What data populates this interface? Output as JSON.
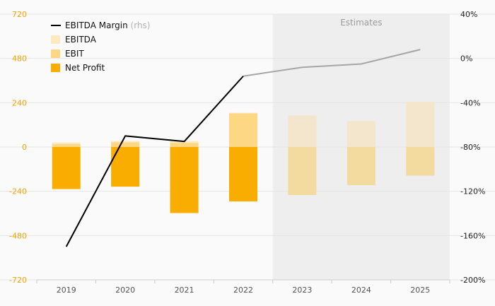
{
  "chart_data": {
    "type": "bar",
    "categories": [
      "2019",
      "2020",
      "2021",
      "2022",
      "2023",
      "2024",
      "2025"
    ],
    "estimates_from_index": 4,
    "estimates_label": "Estimates",
    "ylim_left": [
      -720,
      720
    ],
    "yticks_left": [
      720,
      480,
      240,
      0,
      -240,
      -480,
      -720
    ],
    "ylim_right": [
      -200,
      40
    ],
    "yticks_right": [
      40,
      0,
      -40,
      -80,
      -120,
      -160,
      -200
    ],
    "right_tick_suffix": "%",
    "series": [
      {
        "name": "EBITDA",
        "kind": "bar",
        "values": [
          25,
          32,
          32,
          185,
          170,
          140,
          245
        ]
      },
      {
        "name": "EBIT",
        "kind": "bar",
        "values": [
          15,
          25,
          22,
          182,
          160,
          125,
          230
        ]
      },
      {
        "name": "Net Profit",
        "kind": "bar",
        "values": [
          -228,
          -215,
          -358,
          -295,
          -260,
          -207,
          -155
        ]
      },
      {
        "name": "EBITDA Margin",
        "kind": "line",
        "axis": "right",
        "values": [
          -170,
          -70,
          -75,
          -16,
          -8,
          -5,
          8
        ]
      }
    ],
    "legend": {
      "position": "top-left",
      "items": [
        {
          "label": "EBITDA Margin",
          "suffix": "(rhs)",
          "color": "#000000",
          "shape": "line"
        },
        {
          "label": "EBITDA",
          "color": "#fde9bf",
          "shape": "square"
        },
        {
          "label": "EBIT",
          "color": "#fdd784",
          "shape": "square"
        },
        {
          "label": "Net Profit",
          "color": "#f8ad00",
          "shape": "square"
        }
      ]
    },
    "colors": {
      "ebitda": "#fde9bf",
      "ebit": "#fdd784",
      "net_profit": "#f8ad00",
      "estimate_bar_top": "#f3e6cc",
      "estimate_bar_bottom": "#f3da9e",
      "line_actual": "#000000",
      "line_estimate": "#a6a6a6",
      "left_axis_ticks": "#f0a500",
      "right_axis_ticks": "#222222",
      "x_axis_ticks": "#555555",
      "shade": "#eeeeee",
      "grid": "#e6e6e6"
    },
    "grid": true
  }
}
